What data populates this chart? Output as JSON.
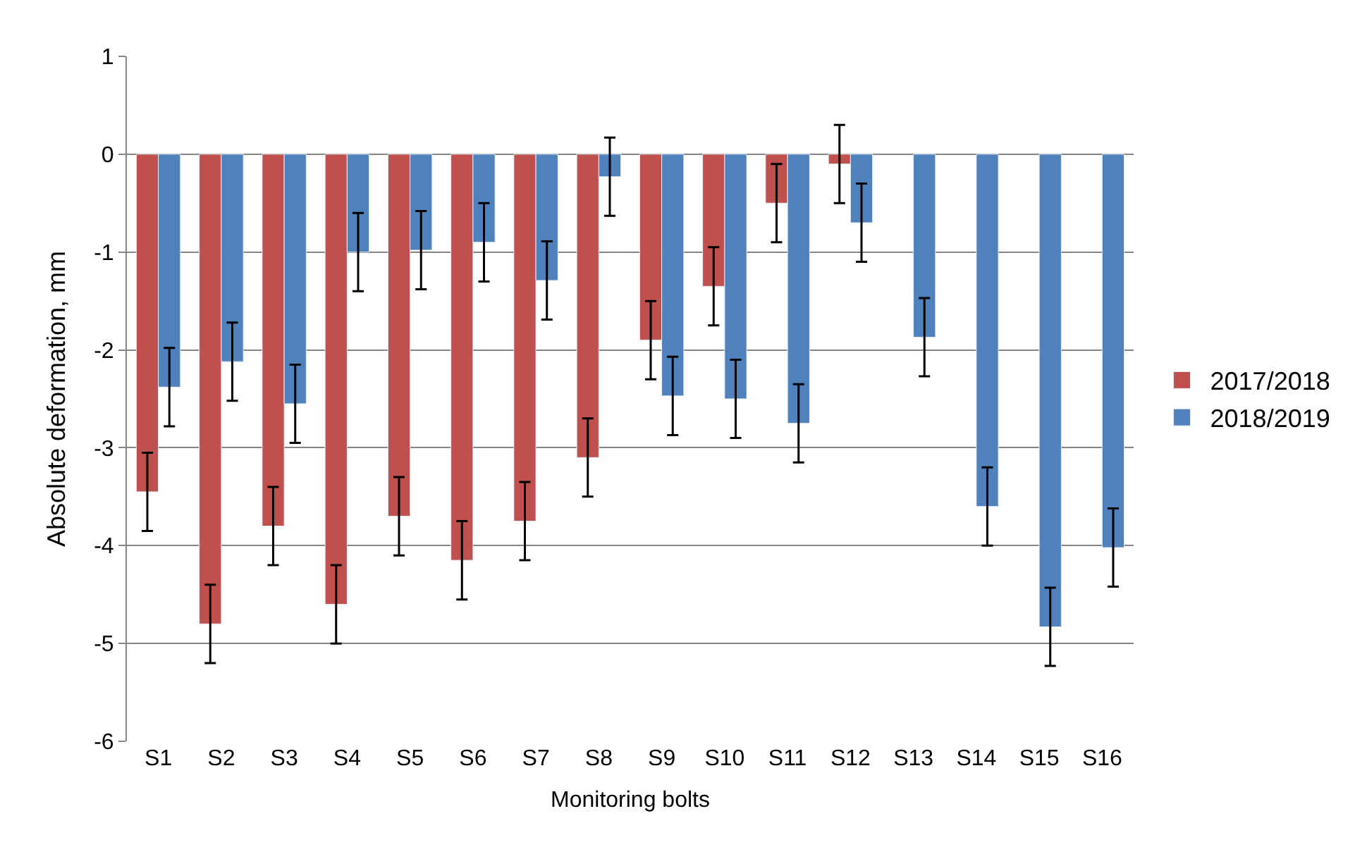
{
  "chart_data": {
    "type": "bar",
    "xlabel": "Monitoring bolts",
    "ylabel": "Absolute deformation, mm",
    "categories": [
      "S1",
      "S2",
      "S3",
      "S4",
      "S5",
      "S6",
      "S7",
      "S8",
      "S9",
      "S10",
      "S11",
      "S12",
      "S13",
      "S14",
      "S15",
      "S16"
    ],
    "series": [
      {
        "name": "2017/2018",
        "color": "#c0504d",
        "values": [
          -3.45,
          -4.8,
          -3.8,
          -4.6,
          -3.7,
          -4.15,
          -3.75,
          -3.1,
          -1.9,
          -1.35,
          -0.5,
          -0.1,
          null,
          null,
          null,
          null
        ],
        "errors": [
          0.4,
          0.4,
          0.4,
          0.4,
          0.4,
          0.4,
          0.4,
          0.4,
          0.4,
          0.4,
          0.4,
          0.4,
          null,
          null,
          null,
          null
        ]
      },
      {
        "name": "2018/2019",
        "color": "#4f81bd",
        "values": [
          -2.38,
          -2.12,
          -2.55,
          -1.0,
          -0.98,
          -0.9,
          -1.29,
          -0.23,
          -2.47,
          -2.5,
          -2.75,
          -0.7,
          -1.87,
          -3.6,
          -4.83,
          -4.02
        ],
        "errors": [
          0.4,
          0.4,
          0.4,
          0.4,
          0.4,
          0.4,
          0.4,
          0.4,
          0.4,
          0.4,
          0.4,
          0.4,
          0.4,
          0.4,
          0.4,
          0.4
        ]
      }
    ],
    "ylim": [
      -6,
      1
    ],
    "yticks": [
      -6,
      -5,
      -4,
      -3,
      -2,
      -1,
      0,
      1
    ],
    "grid": "y",
    "legend": "right"
  }
}
